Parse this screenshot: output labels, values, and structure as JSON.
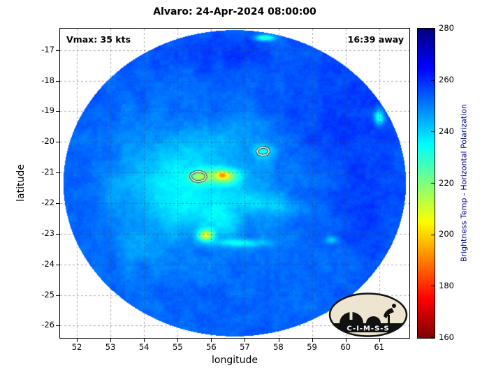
{
  "logo": {
    "text": "C-I-M-S-S"
  },
  "chart_data": {
    "type": "heatmap",
    "title": "Alvaro: 24-Apr-2024 08:00:00",
    "xlabel": "longitude",
    "ylabel": "latitude",
    "xlim": [
      51.5,
      61.9
    ],
    "ylim": [
      -26.4,
      -16.3
    ],
    "xticks": [
      52,
      53,
      54,
      55,
      56,
      57,
      58,
      59,
      60,
      61
    ],
    "yticks": [
      -17,
      -18,
      -19,
      -20,
      -21,
      -22,
      -23,
      -24,
      -25,
      -26
    ],
    "grid": true,
    "annotations": [
      {
        "id": "vmax",
        "text": "Vmax: 35 kts",
        "position": "top-left"
      },
      {
        "id": "time",
        "text": "16:39 away",
        "position": "top-right"
      }
    ],
    "colorbar": {
      "label": "Brightness Temp - Horizontal Polarization",
      "min": 160,
      "max": 280,
      "ticks": [
        160,
        180,
        200,
        220,
        240,
        260,
        280
      ],
      "colormap": "jet",
      "position": "right"
    },
    "swath": {
      "center": [
        56.7,
        -21.35
      ],
      "radius_lon": 5.1,
      "radius_lat": 5.0,
      "background_temp_K": 254,
      "outside_color": "#ffffff"
    },
    "blobs_format": "[lon, lat, sigma_lon_deg, sigma_lat_deg, delta_temp_K]",
    "blobs": [
      [
        56.0,
        -21.4,
        1.6,
        1.3,
        -9
      ],
      [
        55.2,
        -22.2,
        1.0,
        0.9,
        -7
      ],
      [
        54.7,
        -21.2,
        0.9,
        1.0,
        -8
      ],
      [
        53.3,
        -21.8,
        0.8,
        1.2,
        -5
      ],
      [
        56.5,
        -21.5,
        3.2,
        3.0,
        -4
      ],
      [
        54.0,
        -23.5,
        1.2,
        1.0,
        -5
      ],
      [
        53.5,
        -19.6,
        1.0,
        1.0,
        -3
      ],
      [
        56.4,
        -21.12,
        0.45,
        0.25,
        -30
      ],
      [
        56.32,
        -21.08,
        0.16,
        0.11,
        -22
      ],
      [
        55.65,
        -21.12,
        0.35,
        0.22,
        -20
      ],
      [
        57.55,
        -20.32,
        0.32,
        0.24,
        -16
      ],
      [
        57.3,
        -21.95,
        0.6,
        0.35,
        -8
      ],
      [
        58.2,
        -22.15,
        0.7,
        0.3,
        -6
      ],
      [
        56.3,
        -22.6,
        0.5,
        0.6,
        -10
      ],
      [
        55.85,
        -23.05,
        0.22,
        0.18,
        -38
      ],
      [
        56.9,
        -23.3,
        0.8,
        0.13,
        -15
      ],
      [
        56.4,
        -19.9,
        0.9,
        0.4,
        -6
      ],
      [
        57.0,
        -19.35,
        0.7,
        0.3,
        -4
      ],
      [
        54.9,
        -20.3,
        0.8,
        0.5,
        -4
      ],
      [
        61.0,
        -19.2,
        0.15,
        0.25,
        -26
      ],
      [
        57.6,
        -16.6,
        0.3,
        0.1,
        -26
      ],
      [
        59.6,
        -23.2,
        0.18,
        0.12,
        -14
      ],
      [
        59.9,
        -19.3,
        1.6,
        1.6,
        5
      ],
      [
        60.5,
        -21.8,
        1.2,
        1.6,
        4
      ],
      [
        56.6,
        -17.2,
        1.6,
        0.7,
        4
      ]
    ],
    "noise": {
      "octaves": [
        [
          2.2,
          2.2
        ],
        [
          7,
          1.4
        ],
        [
          23,
          1.1
        ]
      ]
    },
    "contours": [
      {
        "color": "#ffffff",
        "points": [
          [
            57.36,
            -20.3
          ],
          [
            57.44,
            -20.2
          ],
          [
            57.56,
            -20.17
          ],
          [
            57.68,
            -20.21
          ],
          [
            57.73,
            -20.31
          ],
          [
            57.66,
            -20.41
          ],
          [
            57.52,
            -20.44
          ],
          [
            57.41,
            -20.4
          ]
        ]
      },
      {
        "color": "#ffffff",
        "points": [
          [
            55.4,
            -21.06
          ],
          [
            55.52,
            -20.98
          ],
          [
            55.68,
            -20.97
          ],
          [
            55.81,
            -21.03
          ],
          [
            55.85,
            -21.14
          ],
          [
            55.78,
            -21.25
          ],
          [
            55.62,
            -21.3
          ],
          [
            55.47,
            -21.26
          ],
          [
            55.39,
            -21.16
          ]
        ]
      }
    ]
  }
}
